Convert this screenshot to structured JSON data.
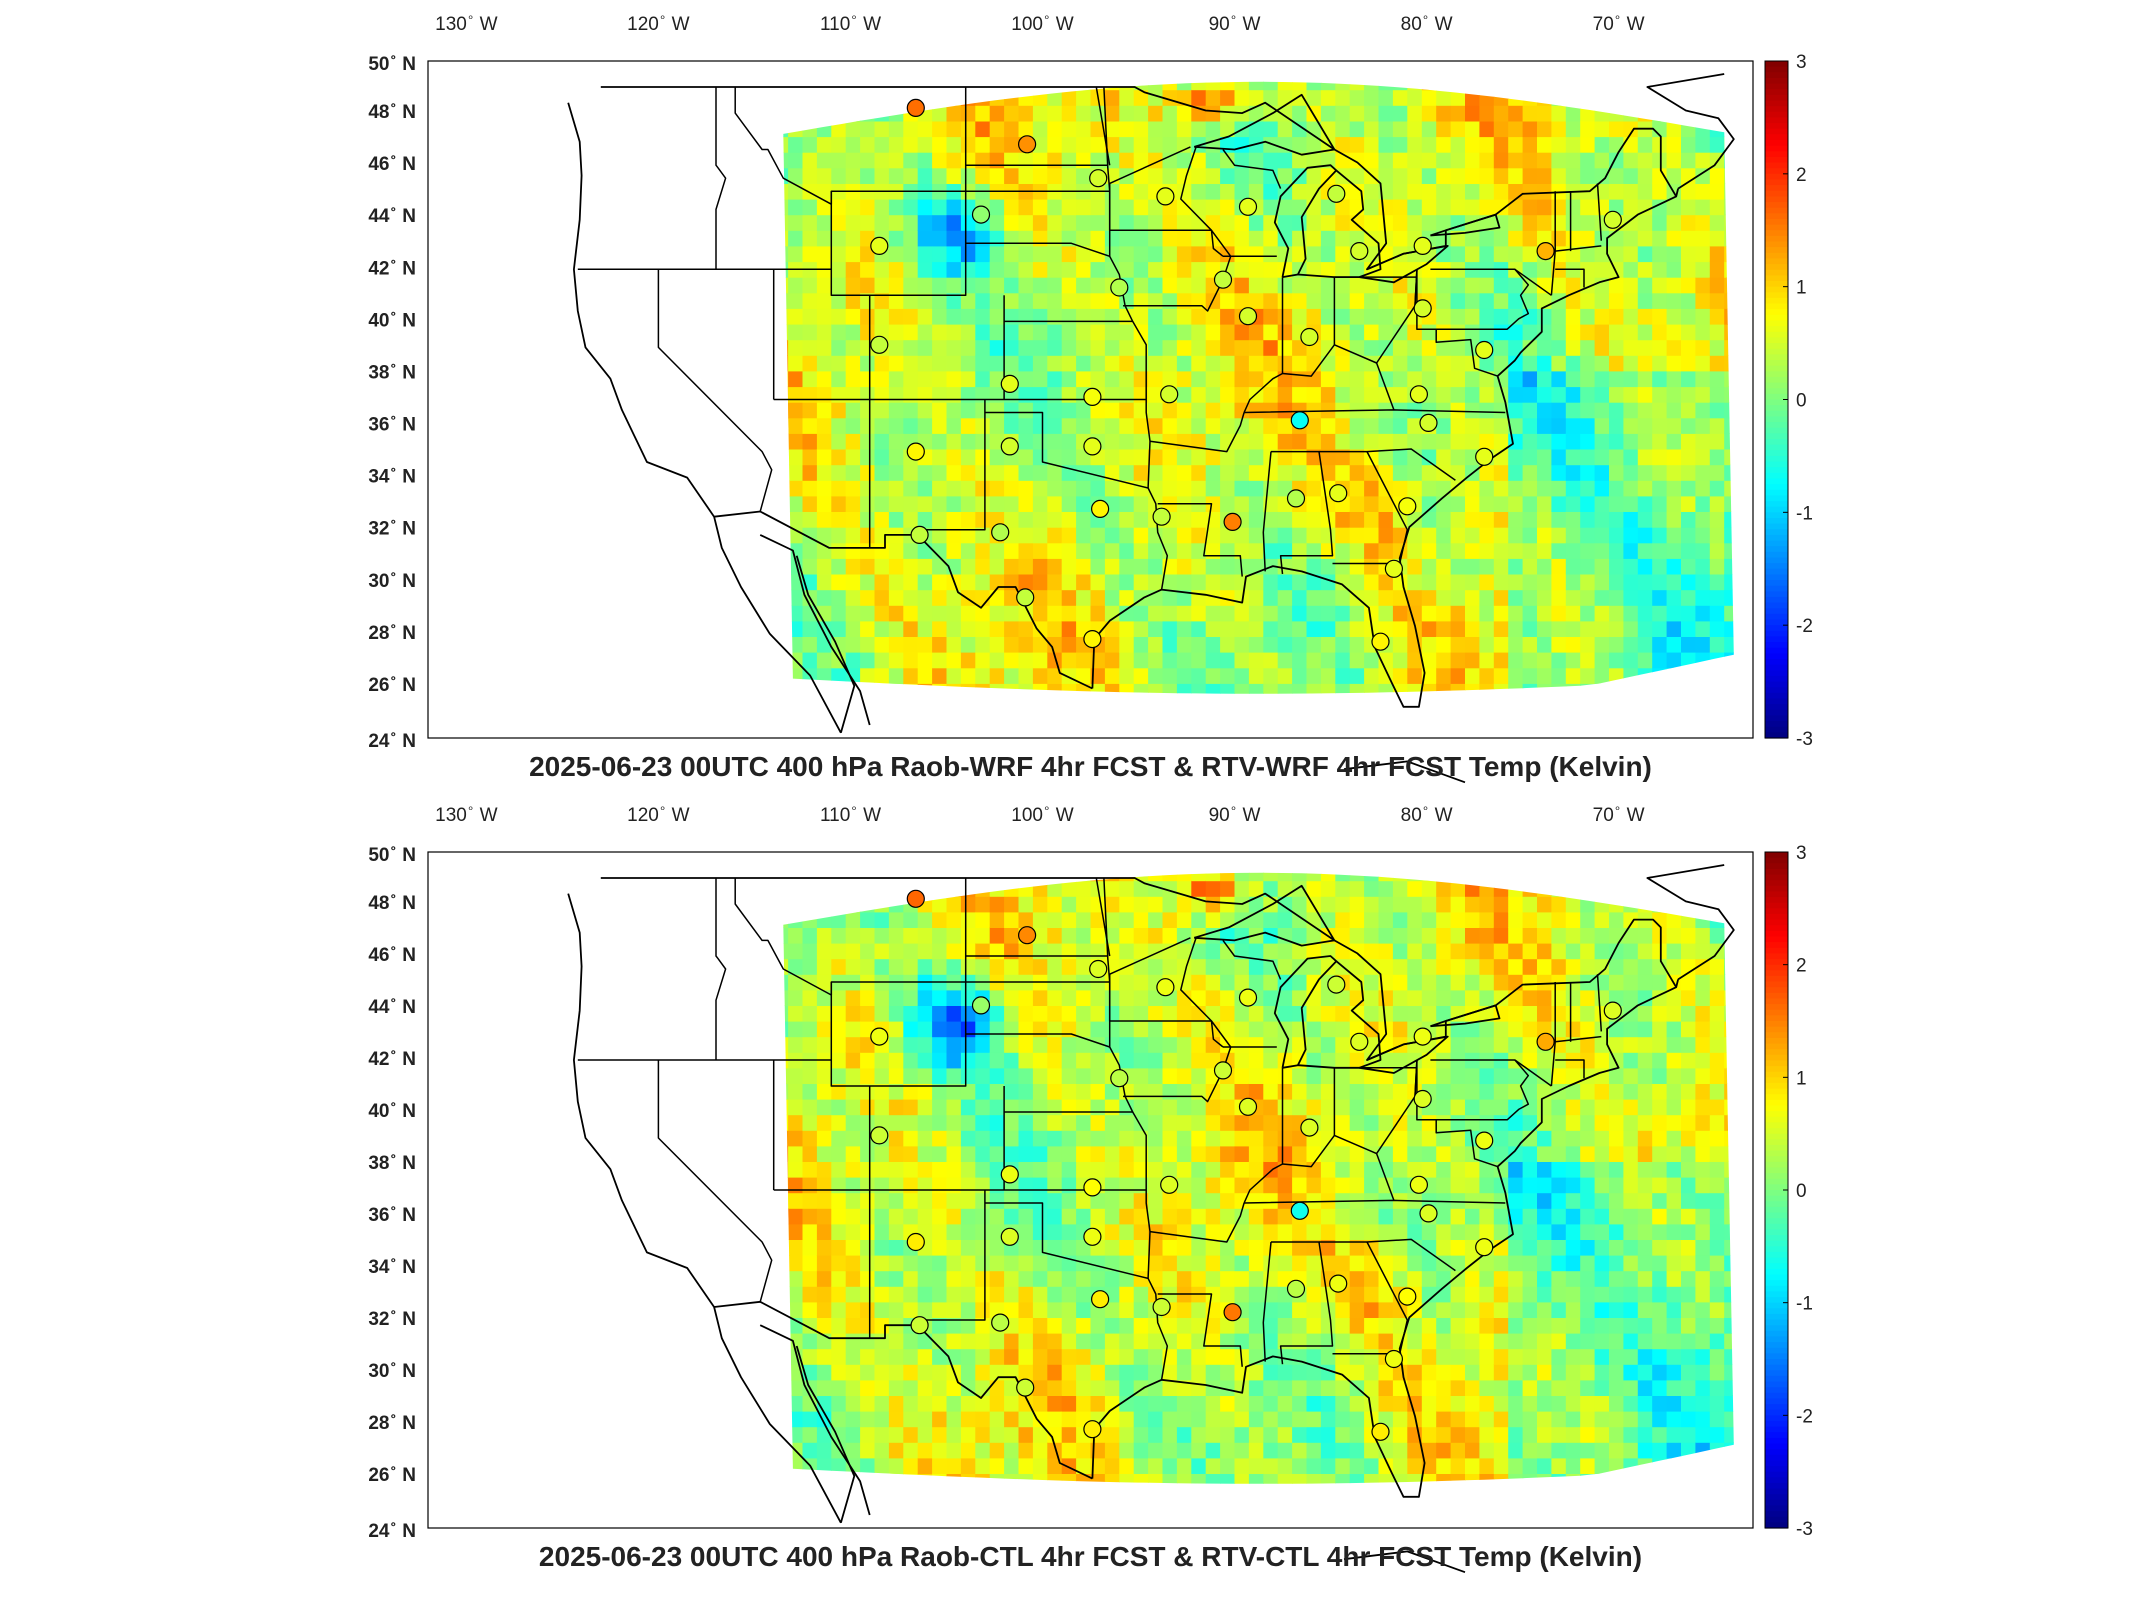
{
  "panels": [
    {
      "title": "2025-06-23 00UTC 400 hPa Raob-WRF 4hr FCST & RTV-WRF 4hr FCST Temp (Kelvin)",
      "seed": 11
    },
    {
      "title": "2025-06-23 00UTC 400 hPa Raob-CTL 4hr FCST & RTV-CTL 4hr FCST Temp (Kelvin)",
      "seed": 29
    }
  ],
  "lon_labels": [
    "130",
    "120",
    "110",
    "100",
    "90",
    "80",
    "70"
  ],
  "lon_suffix": "W",
  "lat_labels": [
    "50",
    "48",
    "46",
    "44",
    "42",
    "40",
    "38",
    "36",
    "34",
    "32",
    "30",
    "28",
    "26",
    "24"
  ],
  "lat_suffix": "N",
  "colorbar": {
    "ticks": [
      "3",
      "2",
      "1",
      "0",
      "-1",
      "-2",
      "-3"
    ],
    "min": -3,
    "max": 3
  },
  "colors": {
    "jet": [
      "#00007f",
      "#0000ff",
      "#007fff",
      "#00ffff",
      "#7fff7f",
      "#ffff00",
      "#ff7f00",
      "#ff0000",
      "#7f0000"
    ],
    "border": "#000000"
  },
  "raob_stations": [
    {
      "lon": -106.6,
      "lat": 48.2,
      "v": 1.6
    },
    {
      "lon": -100.8,
      "lat": 46.8,
      "v": 1.4
    },
    {
      "lon": -97.1,
      "lat": 45.5,
      "v": 0.5
    },
    {
      "lon": -93.6,
      "lat": 44.8,
      "v": 0.6
    },
    {
      "lon": -89.3,
      "lat": 44.4,
      "v": 0.6
    },
    {
      "lon": -84.7,
      "lat": 44.9,
      "v": 0.4
    },
    {
      "lon": -103.2,
      "lat": 44.1,
      "v": 0.1
    },
    {
      "lon": -108.5,
      "lat": 42.9,
      "v": 0.6
    },
    {
      "lon": -90.6,
      "lat": 41.6,
      "v": 0.4
    },
    {
      "lon": -83.5,
      "lat": 42.7,
      "v": 0.5
    },
    {
      "lon": -80.2,
      "lat": 42.9,
      "v": 0.6
    },
    {
      "lon": -73.8,
      "lat": 42.7,
      "v": 1.2
    },
    {
      "lon": -70.3,
      "lat": 43.9,
      "v": 0.5
    },
    {
      "lon": -96.0,
      "lat": 41.3,
      "v": 0.3
    },
    {
      "lon": -89.3,
      "lat": 40.2,
      "v": 0.5
    },
    {
      "lon": -86.1,
      "lat": 39.4,
      "v": 0.5
    },
    {
      "lon": -80.2,
      "lat": 40.5,
      "v": 0.5
    },
    {
      "lon": -108.5,
      "lat": 39.1,
      "v": 0.4
    },
    {
      "lon": -101.7,
      "lat": 37.6,
      "v": 0.6
    },
    {
      "lon": -97.4,
      "lat": 37.1,
      "v": 0.7
    },
    {
      "lon": -93.4,
      "lat": 37.2,
      "v": 0.5
    },
    {
      "lon": -86.6,
      "lat": 36.2,
      "v": -0.7
    },
    {
      "lon": -80.4,
      "lat": 37.2,
      "v": 0.6
    },
    {
      "lon": -77.0,
      "lat": 38.9,
      "v": 0.6
    },
    {
      "lon": -106.6,
      "lat": 35.0,
      "v": 0.8
    },
    {
      "lon": -101.7,
      "lat": 35.2,
      "v": 0.5
    },
    {
      "lon": -97.4,
      "lat": 35.2,
      "v": 0.6
    },
    {
      "lon": -79.9,
      "lat": 36.1,
      "v": 0.5
    },
    {
      "lon": -77.0,
      "lat": 34.8,
      "v": 0.6
    },
    {
      "lon": -106.4,
      "lat": 31.8,
      "v": 0.4
    },
    {
      "lon": -102.2,
      "lat": 31.9,
      "v": 0.3
    },
    {
      "lon": -97.0,
      "lat": 32.8,
      "v": 0.8
    },
    {
      "lon": -93.8,
      "lat": 32.5,
      "v": 0.4
    },
    {
      "lon": -90.1,
      "lat": 32.3,
      "v": 1.5
    },
    {
      "lon": -86.8,
      "lat": 33.2,
      "v": 0.3
    },
    {
      "lon": -84.6,
      "lat": 33.4,
      "v": 0.6
    },
    {
      "lon": -81.0,
      "lat": 32.9,
      "v": 0.7
    },
    {
      "lon": -81.7,
      "lat": 30.5,
      "v": 0.6
    },
    {
      "lon": -100.9,
      "lat": 29.4,
      "v": 0.4
    },
    {
      "lon": -97.4,
      "lat": 27.8,
      "v": 0.8
    },
    {
      "lon": -82.4,
      "lat": 27.7,
      "v": 0.8
    }
  ]
}
